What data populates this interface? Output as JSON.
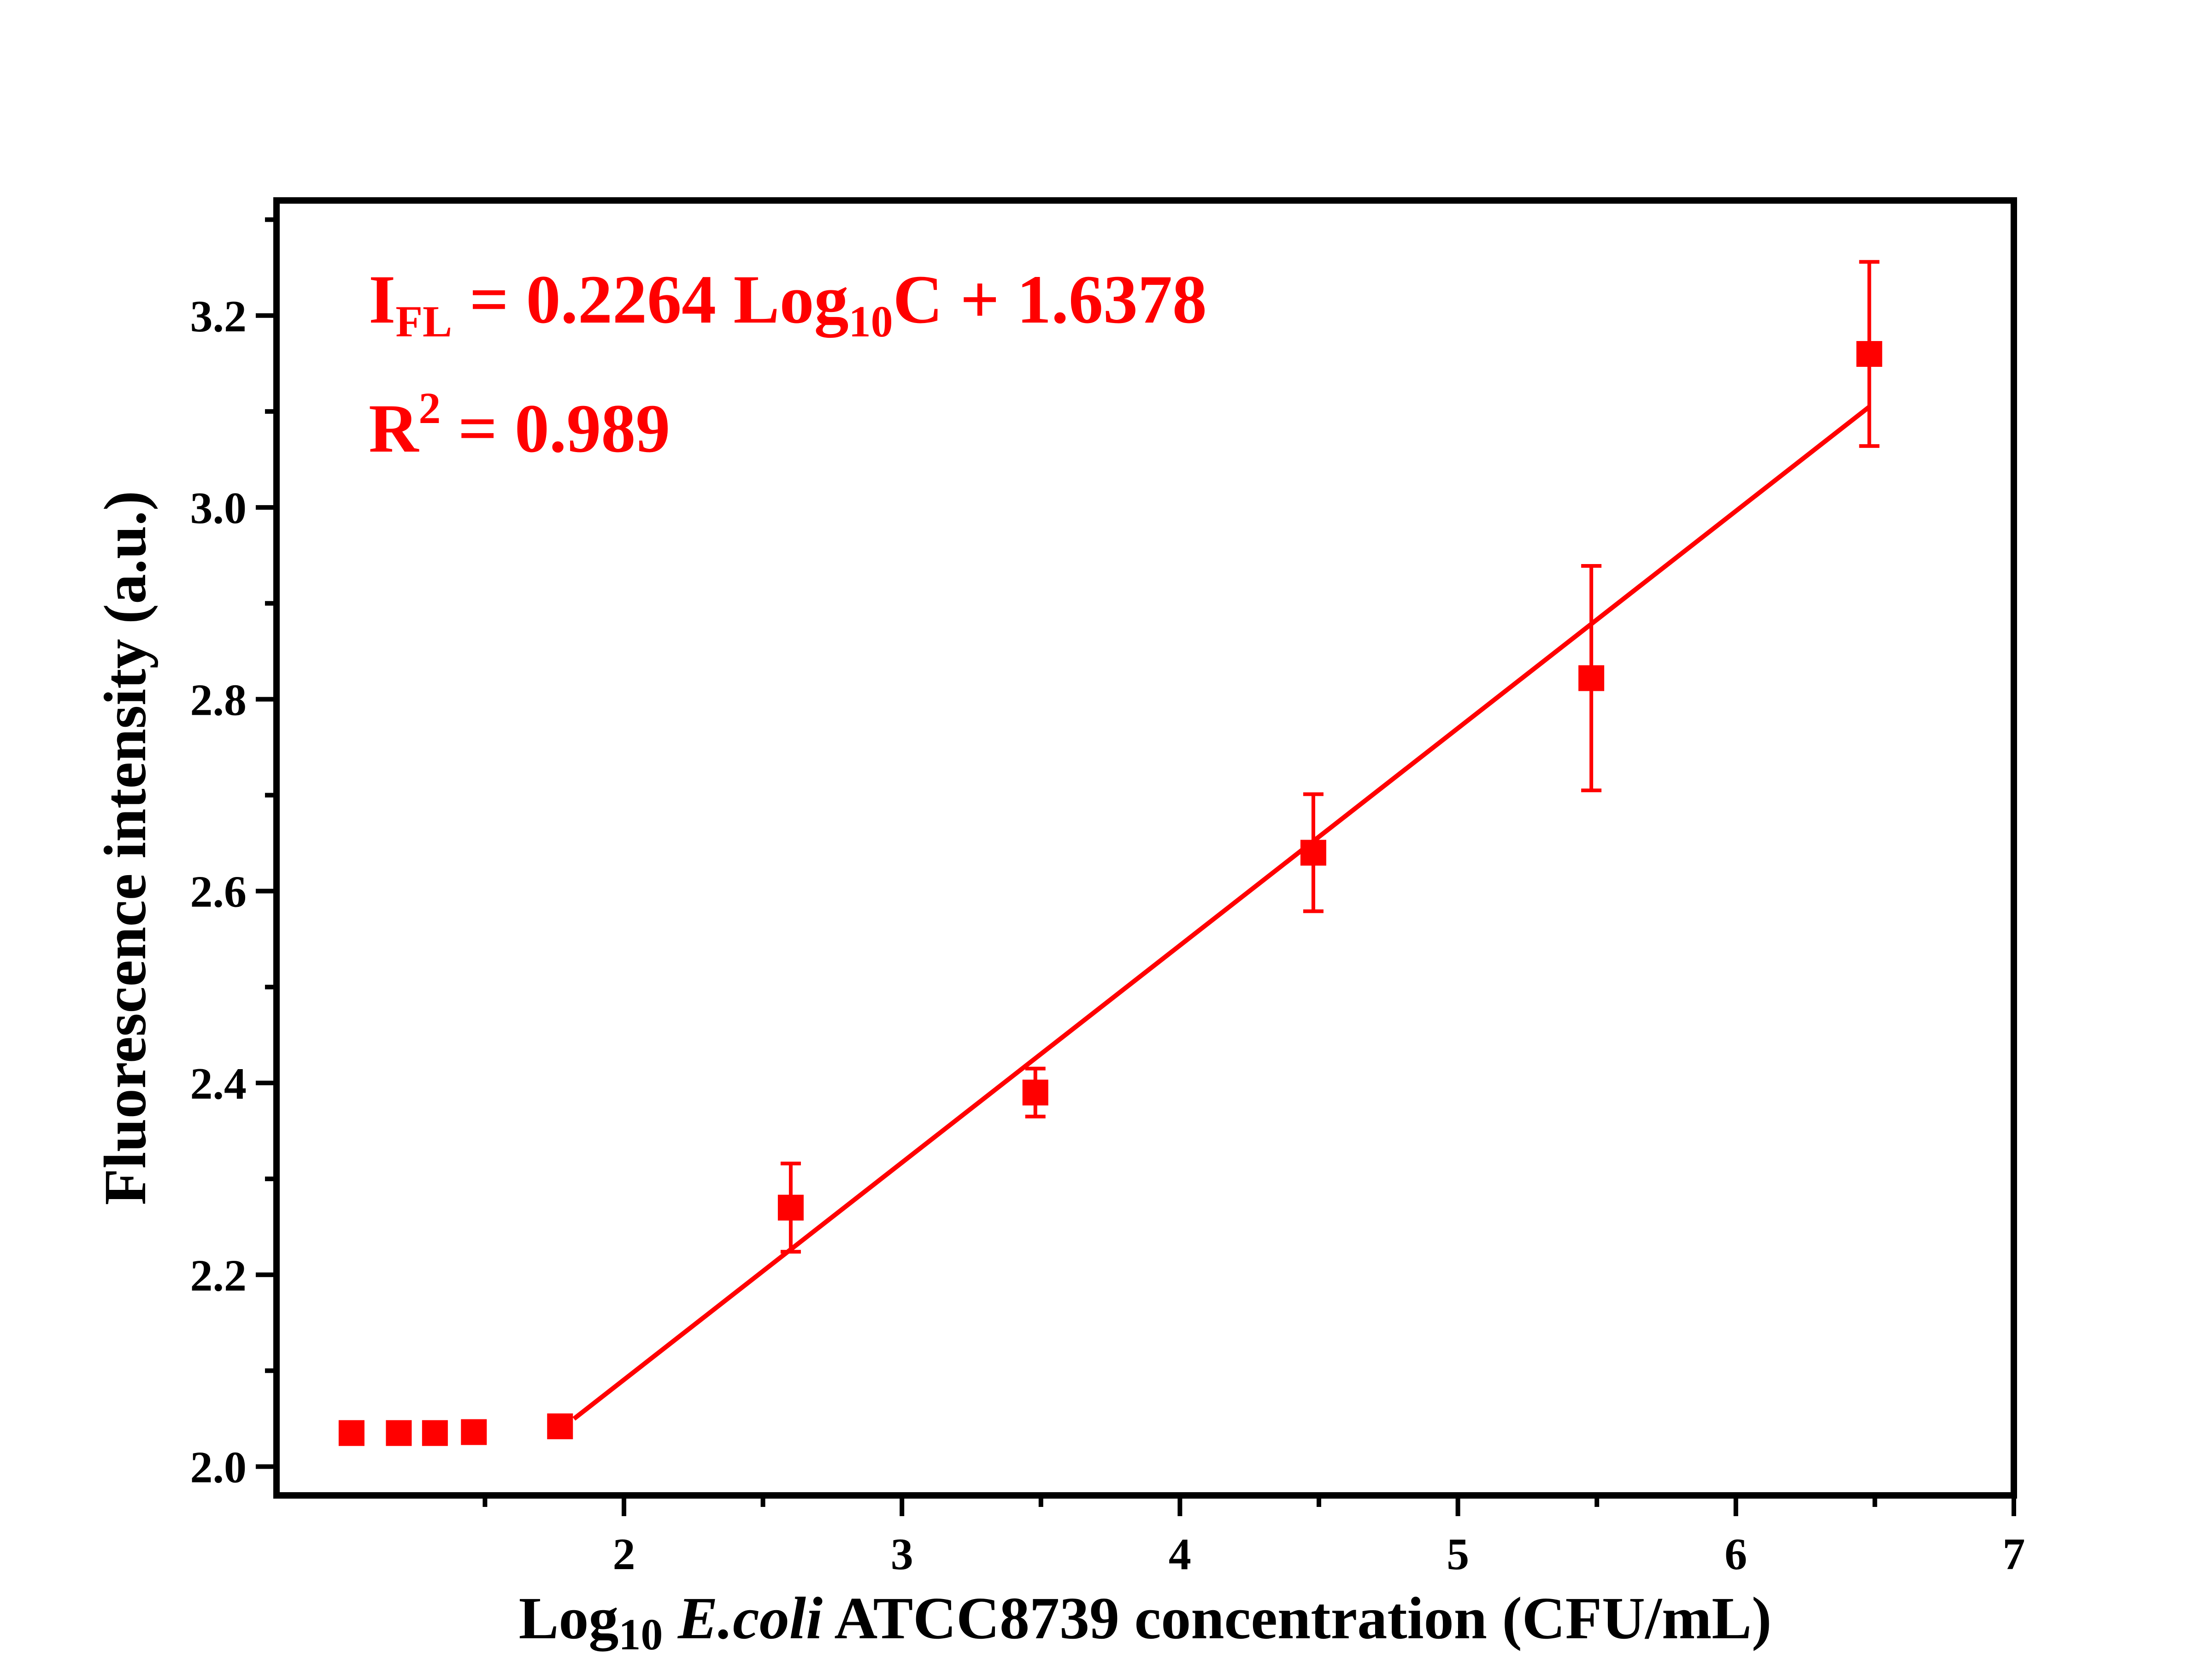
{
  "chart_data": {
    "type": "scatter",
    "x_label": {
      "prefix": "Log",
      "prefix_sub": "10",
      "species": "E.coli",
      "rest": "ATCC8739 concentration (CFU/mL)"
    },
    "y_label": "Fluorescence intensity (a.u.)",
    "xlim": [
      0.75,
      7
    ],
    "ylim": [
      1.97,
      3.32
    ],
    "x_ticks": [
      2,
      3,
      4,
      5,
      6,
      7
    ],
    "x_minor_ticks": [
      1.5,
      2.5,
      3.5,
      4.5,
      5.5,
      6.5
    ],
    "y_ticks": [
      "2.0",
      "2.2",
      "2.4",
      "2.6",
      "2.8",
      "3.0",
      "3.2"
    ],
    "y_minor_ticks": [
      2.1,
      2.3,
      2.5,
      2.7,
      2.9,
      3.1,
      3.3
    ],
    "series_color": "#ff0000",
    "points": [
      {
        "x": 1.02,
        "y": 2.035,
        "err": 0.006
      },
      {
        "x": 1.19,
        "y": 2.035,
        "err": 0.006
      },
      {
        "x": 1.32,
        "y": 2.035,
        "err": 0.006
      },
      {
        "x": 1.46,
        "y": 2.036,
        "err": 0.006
      },
      {
        "x": 1.77,
        "y": 2.042,
        "err": 0.006
      },
      {
        "x": 2.6,
        "y": 2.27,
        "err": 0.046
      },
      {
        "x": 3.48,
        "y": 2.39,
        "err": 0.025
      },
      {
        "x": 4.48,
        "y": 2.64,
        "err": 0.061
      },
      {
        "x": 5.48,
        "y": 2.822,
        "err": 0.117
      },
      {
        "x": 6.48,
        "y": 3.16,
        "err": 0.096
      }
    ],
    "fit": {
      "slope": 0.2264,
      "intercept": 1.6378,
      "x_range": [
        1.82,
        6.48
      ]
    },
    "annotation": {
      "line1": {
        "I": "I",
        "FL": "FL",
        "eq": " = 0.2264 Log",
        "sub10": "10",
        "tail": "C + 1.6378"
      },
      "line2": {
        "R": "R",
        "sup": "2",
        "tail": " = 0.989"
      }
    }
  }
}
